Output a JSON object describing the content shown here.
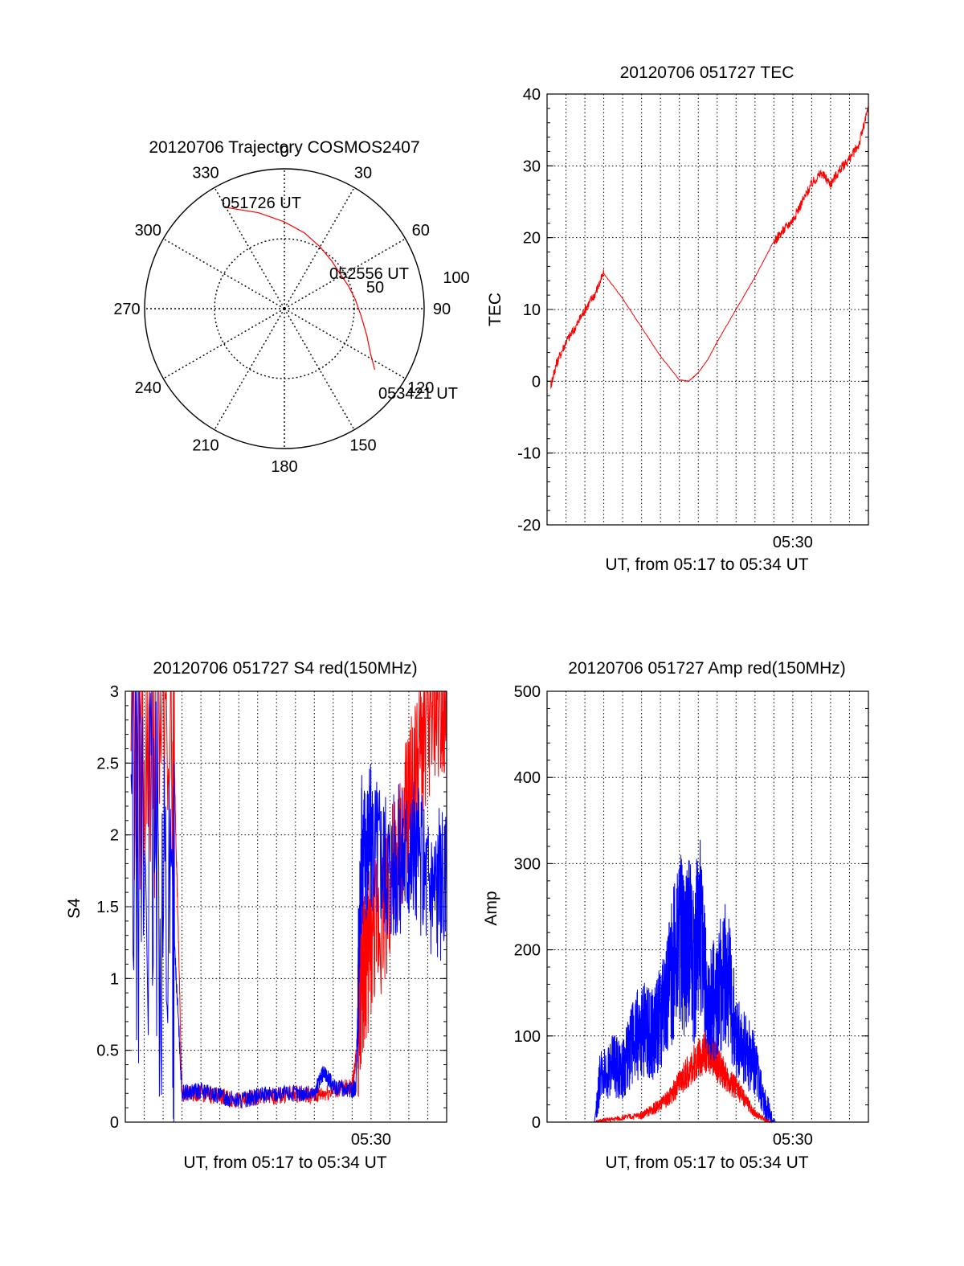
{
  "chart_data": [
    {
      "type": "polar",
      "title": "20120706 Trajectory COSMOS2407",
      "azimuth_labels": [
        "0",
        "30",
        "60",
        "90",
        "120",
        "150",
        "180",
        "210",
        "240",
        "270",
        "300",
        "330"
      ],
      "radial_labels": [
        "50",
        "100"
      ],
      "rlim": [
        0,
        100
      ],
      "grid": true,
      "series": [
        {
          "color": "#ff0000",
          "points": [
            [
              330.5,
              83
            ],
            [
              345,
              71
            ],
            [
              0,
              62
            ],
            [
              15,
              56
            ],
            [
              30,
              51
            ],
            [
              45,
              48
            ],
            [
              58,
              47
            ],
            [
              70,
              48.5
            ],
            [
              82,
              51
            ],
            [
              95,
              55
            ],
            [
              108,
              62
            ],
            [
              118,
              70
            ],
            [
              124,
              78
            ]
          ]
        }
      ],
      "annotations": [
        "051726 UT",
        "052556 UT",
        "053421 UT"
      ]
    },
    {
      "type": "line",
      "title": "20120706 051727 TEC",
      "xlabel": "UT, from 05:17 to 05:34 UT",
      "ylabel": "TEC",
      "xlim": [
        0,
        17
      ],
      "ylim": [
        -20,
        40
      ],
      "yticks": [
        -20,
        -10,
        0,
        10,
        20,
        30,
        40
      ],
      "xticks": [
        {
          "value": 13,
          "label": "05:30"
        }
      ],
      "grid": true,
      "series": [
        {
          "color": "#ff0000",
          "x": [
            0.2,
            0.5,
            1.0,
            1.5,
            2.0,
            2.5,
            3.0,
            4.0,
            5.0,
            6.0,
            7.0,
            7.5,
            8.0,
            8.5,
            9.0,
            10.0,
            11.0,
            12.0,
            12.5,
            13.0,
            13.5,
            14.0,
            14.5,
            15.0,
            15.5,
            16.0,
            16.5,
            17.0
          ],
          "y": [
            -0.5,
            2.5,
            5.5,
            7.5,
            10,
            12,
            15,
            11.5,
            7.5,
            3.5,
            0.2,
            0,
            1.2,
            3.0,
            5.5,
            10,
            14.5,
            19.5,
            21,
            22.5,
            25,
            27.5,
            29,
            27.5,
            29.5,
            31,
            33,
            38
          ]
        }
      ]
    },
    {
      "type": "line",
      "title": "20120706 051727 S4 red(150MHz)",
      "xlabel": "UT, from 05:17 to 05:34 UT",
      "ylabel": "S4",
      "xlim": [
        0,
        17
      ],
      "ylim": [
        0,
        3
      ],
      "yticks": [
        0,
        0.5,
        1,
        1.5,
        2,
        2.5,
        3
      ],
      "ytick_labels": [
        "0",
        "0.5",
        "1",
        "1.5",
        "2",
        "2.5",
        "3"
      ],
      "xticks": [
        {
          "value": 13,
          "label": "05:30"
        }
      ],
      "grid": true,
      "series": [
        {
          "color": "#ff0000",
          "x": [
            0.3,
            2.5,
            3.0,
            4.0,
            5.0,
            6.0,
            7.0,
            8.0,
            9.0,
            10.0,
            11.0,
            12.0,
            12.2,
            12.5,
            13.0,
            14.0,
            15.0,
            16.0,
            17.0
          ],
          "y": [
            3.0,
            3.0,
            0.2,
            0.2,
            0.18,
            0.15,
            0.17,
            0.18,
            0.2,
            0.18,
            0.22,
            0.25,
            0.45,
            1.0,
            1.25,
            1.6,
            2.2,
            2.8,
            3.0
          ]
        },
        {
          "color": "#0000ff",
          "x": [
            0.3,
            2.5,
            3.0,
            4.0,
            5.0,
            6.0,
            7.0,
            8.0,
            9.0,
            10.0,
            10.5,
            11.0,
            12.0,
            12.2,
            12.5,
            13.0,
            14.0,
            15.0,
            16.0,
            17.0
          ],
          "y": [
            2.0,
            1.5,
            0.2,
            0.22,
            0.18,
            0.15,
            0.18,
            0.2,
            0.2,
            0.2,
            0.35,
            0.25,
            0.22,
            0.25,
            1.9,
            2.0,
            1.8,
            1.9,
            1.7,
            1.6
          ]
        }
      ]
    },
    {
      "type": "line",
      "title": "20120706 051727 Amp red(150MHz)",
      "xlabel": "UT, from 05:17 to 05:34 UT",
      "ylabel": "Amp",
      "xlim": [
        0,
        17
      ],
      "ylim": [
        0,
        500
      ],
      "yticks": [
        0,
        100,
        200,
        300,
        400,
        500
      ],
      "xticks": [
        {
          "value": 13,
          "label": "05:30"
        }
      ],
      "grid": true,
      "series": [
        {
          "color": "#ff0000",
          "x": [
            0,
            2.5,
            3.0,
            4.0,
            5.0,
            5.5,
            6.0,
            6.5,
            7.0,
            7.5,
            8.0,
            8.5,
            9.0,
            9.5,
            10.0,
            10.5,
            11.0,
            11.5,
            12.0,
            17.0
          ],
          "y": [
            0,
            0,
            2,
            5,
            8,
            14,
            20,
            30,
            45,
            60,
            75,
            85,
            70,
            50,
            40,
            25,
            10,
            3,
            0,
            0
          ]
        },
        {
          "color": "#0000ff",
          "x": [
            0,
            2.5,
            2.8,
            3.5,
            4.0,
            4.5,
            5.0,
            5.5,
            6.0,
            6.5,
            7.0,
            7.3,
            7.5,
            7.8,
            8.0,
            8.5,
            9.0,
            9.5,
            10.0,
            10.5,
            11.0,
            11.5,
            12.0,
            17.0
          ],
          "y": [
            0,
            0,
            50,
            65,
            60,
            90,
            110,
            100,
            120,
            160,
            220,
            180,
            230,
            170,
            250,
            130,
            150,
            180,
            100,
            80,
            70,
            25,
            0,
            0
          ]
        }
      ]
    }
  ]
}
